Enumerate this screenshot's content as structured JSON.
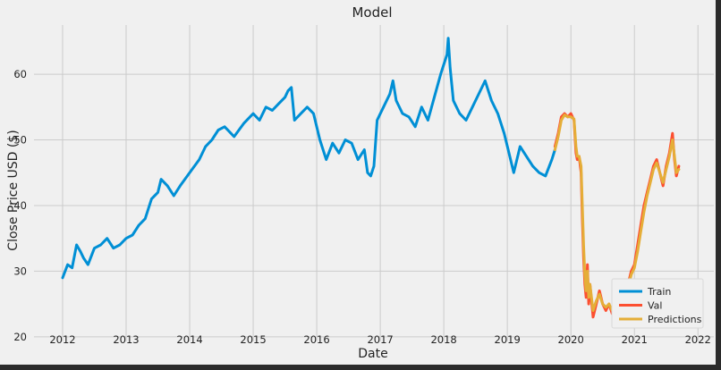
{
  "chart_data": {
    "type": "line",
    "title": "Model",
    "xlabel": "Date",
    "ylabel": "Close Price USD ($)",
    "xlim": [
      2011.55,
      2022.25
    ],
    "ylim": [
      19.3,
      67.5
    ],
    "grid": true,
    "legend_position": "bottom-right",
    "x_ticks": [
      2012,
      2013,
      2014,
      2015,
      2016,
      2017,
      2018,
      2019,
      2020,
      2021,
      2022
    ],
    "x_tick_labels": [
      "2012",
      "2013",
      "2014",
      "2015",
      "2016",
      "2017",
      "2018",
      "2019",
      "2020",
      "2021",
      "2022"
    ],
    "y_ticks": [
      20,
      30,
      40,
      50,
      60
    ],
    "y_tick_labels": [
      "20",
      "30",
      "40",
      "50",
      "60"
    ],
    "series": [
      {
        "name": "Train",
        "color": "#008fd5",
        "x": [
          2012.0,
          2012.08,
          2012.15,
          2012.22,
          2012.28,
          2012.33,
          2012.4,
          2012.5,
          2012.6,
          2012.7,
          2012.8,
          2012.9,
          2013.0,
          2013.1,
          2013.2,
          2013.3,
          2013.4,
          2013.5,
          2013.55,
          2013.65,
          2013.75,
          2013.85,
          2014.0,
          2014.15,
          2014.25,
          2014.35,
          2014.45,
          2014.55,
          2014.7,
          2014.85,
          2015.0,
          2015.1,
          2015.2,
          2015.3,
          2015.4,
          2015.5,
          2015.55,
          2015.6,
          2015.65,
          2015.75,
          2015.85,
          2015.95,
          2016.05,
          2016.15,
          2016.25,
          2016.35,
          2016.45,
          2016.55,
          2016.65,
          2016.75,
          2016.8,
          2016.85,
          2016.9,
          2016.95,
          2017.05,
          2017.15,
          2017.2,
          2017.25,
          2017.35,
          2017.45,
          2017.55,
          2017.65,
          2017.75,
          2017.85,
          2017.95,
          2018.05,
          2018.07,
          2018.1,
          2018.15,
          2018.25,
          2018.35,
          2018.45,
          2018.55,
          2018.65,
          2018.75,
          2018.85,
          2018.95,
          2019.0,
          2019.1,
          2019.2,
          2019.3,
          2019.4,
          2019.5,
          2019.6,
          2019.7,
          2019.75
        ],
        "y": [
          29,
          31,
          30.5,
          34,
          33,
          32,
          31,
          33.5,
          34,
          35,
          33.5,
          34,
          35,
          35.5,
          37,
          38,
          41,
          42,
          44,
          43,
          41.5,
          43,
          45,
          47,
          49,
          50,
          51.5,
          52,
          50.5,
          52.5,
          54,
          53,
          55,
          54.5,
          55.5,
          56.5,
          57.5,
          58,
          53,
          54,
          55,
          54,
          50,
          47,
          49.5,
          48,
          50,
          49.5,
          47,
          48.5,
          45,
          44.5,
          46,
          53,
          55,
          57,
          59,
          56,
          54,
          53.5,
          52,
          55,
          53,
          56.5,
          60,
          63,
          65.5,
          61,
          56,
          54,
          53,
          55,
          57,
          59,
          56,
          54,
          51,
          49,
          45,
          49,
          47.5,
          46,
          45,
          44.5,
          47,
          48.5
        ]
      },
      {
        "name": "Val",
        "color": "#fc4f30",
        "x": [
          2019.75,
          2019.8,
          2019.85,
          2019.9,
          2019.95,
          2020.0,
          2020.05,
          2020.08,
          2020.1,
          2020.13,
          2020.16,
          2020.18,
          2020.2,
          2020.22,
          2020.24,
          2020.26,
          2020.28,
          2020.3,
          2020.35,
          2020.4,
          2020.45,
          2020.5,
          2020.55,
          2020.6,
          2020.65,
          2020.7,
          2020.75,
          2020.8,
          2020.85,
          2020.9,
          2020.95,
          2021.0,
          2021.05,
          2021.1,
          2021.15,
          2021.2,
          2021.25,
          2021.3,
          2021.35,
          2021.4,
          2021.45,
          2021.5,
          2021.55,
          2021.6,
          2021.63,
          2021.66,
          2021.7
        ],
        "y": [
          49,
          51,
          53.5,
          54,
          53.5,
          54,
          53,
          48,
          47,
          47.5,
          45,
          38,
          32,
          28,
          26,
          31,
          25,
          28,
          23,
          25,
          27,
          25,
          24,
          25,
          23.5,
          24,
          22.5,
          24,
          26,
          28,
          30,
          31,
          34,
          37,
          40,
          42,
          44,
          46,
          47,
          45,
          43,
          46,
          48,
          51,
          47,
          44.5,
          46
        ]
      },
      {
        "name": "Predictions",
        "color": "#e5ae38",
        "x": [
          2019.75,
          2019.8,
          2019.85,
          2019.9,
          2019.95,
          2020.0,
          2020.05,
          2020.08,
          2020.1,
          2020.13,
          2020.16,
          2020.18,
          2020.2,
          2020.22,
          2020.24,
          2020.26,
          2020.28,
          2020.3,
          2020.35,
          2020.4,
          2020.45,
          2020.5,
          2020.55,
          2020.6,
          2020.65,
          2020.7,
          2020.75,
          2020.8,
          2020.85,
          2020.9,
          2020.95,
          2021.0,
          2021.05,
          2021.1,
          2021.15,
          2021.2,
          2021.25,
          2021.3,
          2021.35,
          2021.4,
          2021.45,
          2021.5,
          2021.55,
          2021.6,
          2021.63,
          2021.66,
          2021.7
        ],
        "y": [
          48.5,
          50.5,
          53,
          53.8,
          53.5,
          53.5,
          53.2,
          49,
          47.5,
          47.5,
          46,
          40,
          34,
          29.5,
          27,
          30,
          26,
          28,
          24,
          25.5,
          26.5,
          25,
          24.5,
          25,
          24,
          24,
          23.5,
          24,
          25.5,
          27.5,
          29.5,
          30.5,
          33,
          36,
          39,
          41.5,
          43.5,
          45.5,
          46.5,
          45,
          43.5,
          45.5,
          47.5,
          50,
          47.5,
          45,
          45.5
        ]
      }
    ]
  }
}
